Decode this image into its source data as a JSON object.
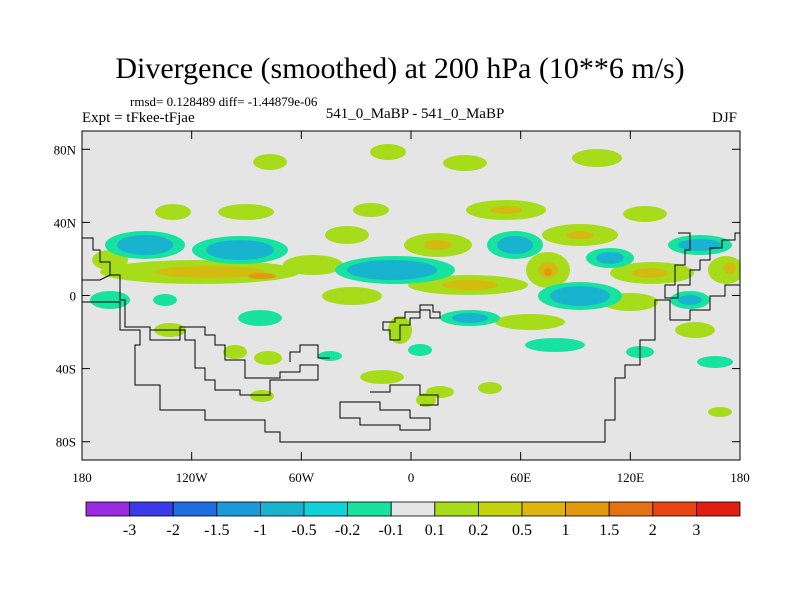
{
  "title": "Divergence (smoothed) at 200 hPa (10**6 m/s)",
  "stats": "rmsd= 0.128489 diff= -1.44879e-06",
  "expt": "Expt = tFkee-tFjae",
  "center_label": "541_0_MaBP - 541_0_MaBP",
  "season": "DJF",
  "lat_ticks": [
    "80N",
    "40N",
    "0",
    "40S",
    "80S"
  ],
  "lon_ticks": [
    "180",
    "120W",
    "60W",
    "0",
    "60E",
    "120E",
    "180"
  ],
  "colorbar": {
    "colors": [
      "#9a2be0",
      "#3a3ae6",
      "#1f6ee0",
      "#1a9ad8",
      "#18b4cf",
      "#10d2d8",
      "#17e2a0",
      "#e5e5e5",
      "#a6dc1a",
      "#c5d20e",
      "#dcb50f",
      "#e3990f",
      "#e57210",
      "#e84512",
      "#e01f12"
    ],
    "labels": [
      "-3",
      "-2",
      "-1.5",
      "-1",
      "-0.5",
      "-0.2",
      "-0.1",
      "0.1",
      "0.2",
      "0.5",
      "1",
      "1.5",
      "2",
      "3"
    ]
  },
  "map": {
    "background": "#e5e5e5",
    "extent": {
      "lon": [
        -180,
        180
      ],
      "lat": [
        -90,
        90
      ]
    }
  }
}
